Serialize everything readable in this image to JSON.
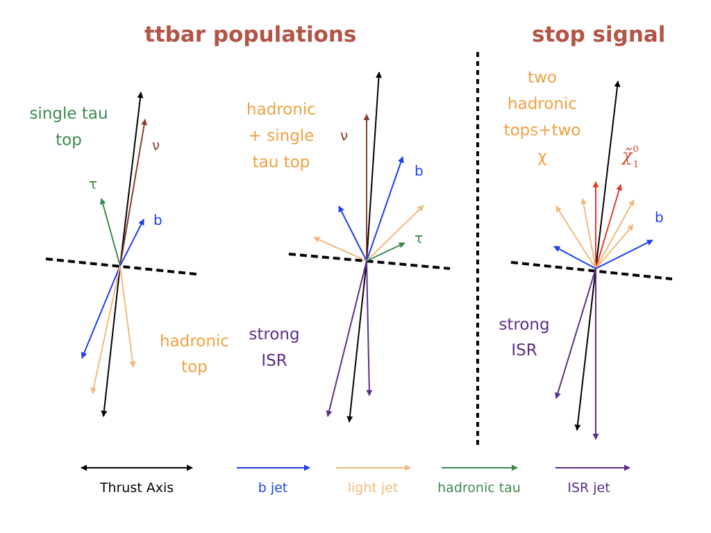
{
  "titles": {
    "ttbar": "ttbar populations",
    "stop": "stop signal"
  },
  "panel1": {
    "title_lines": [
      "single tau",
      "top"
    ],
    "nu": "ν",
    "tau": "τ",
    "b": "b",
    "bottom_lines": [
      "hadronic",
      "top"
    ]
  },
  "panel2": {
    "title_lines": [
      "hadronic",
      "+ single",
      "tau top"
    ],
    "nu": "ν",
    "b": "b",
    "tau": "τ",
    "bottom_lines": [
      "strong",
      "ISR"
    ]
  },
  "panel3": {
    "title_lines": [
      "two",
      "hadronic",
      "tops+two",
      "χ"
    ],
    "neutralino": "χ̃",
    "neutralino_sup": "0",
    "neutralino_sub": "1",
    "b": "b",
    "bottom_lines": [
      "strong",
      "ISR"
    ]
  },
  "legend": [
    {
      "label": "Thrust Axis",
      "color": "#000000",
      "double_headed": true
    },
    {
      "label": "b jet",
      "color": "#1b3ef0"
    },
    {
      "label": "light jet",
      "color": "#f2b87e"
    },
    {
      "label": "hadronic tau",
      "color": "#3b8a4e"
    },
    {
      "label": "ISR jet",
      "color": "#5b2d8a"
    }
  ],
  "colors": {
    "thrust": "#000000",
    "b_jet": "#1b3ef0",
    "light_jet": "#f2b87e",
    "tau": "#3b8a4e",
    "isr": "#5b2d8a",
    "neutrino": "#8a3b33",
    "neutralino": "#e23c26",
    "title": "#b35447",
    "label_orange": "#f0a040"
  }
}
